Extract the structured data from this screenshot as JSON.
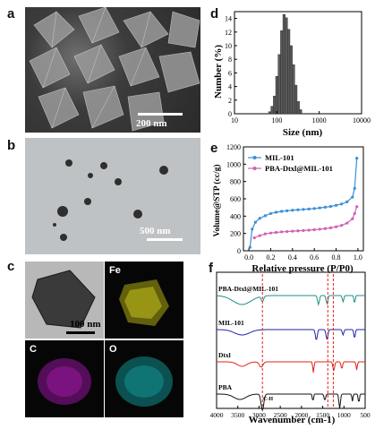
{
  "panels": {
    "a": {
      "label": "a",
      "scalebar": "200 nm"
    },
    "b": {
      "label": "b",
      "scalebar": "500 nm"
    },
    "c": {
      "label": "c",
      "scalebar": "100 nm",
      "maps": [
        "Fe",
        "C",
        "O"
      ]
    },
    "d": {
      "label": "d"
    },
    "e": {
      "label": "e"
    },
    "f": {
      "label": "f"
    }
  },
  "colors": {
    "hist": "#5a5a5a",
    "mil": "#3a8fd6",
    "pba_mil": "#d15fb3",
    "teal": "#1f8f84",
    "blue": "#2323a6",
    "red": "#e2231a",
    "black": "#111111",
    "fe": "#d9d21a",
    "c": "#c21ec9",
    "o": "#17c7c2"
  },
  "chart_data": [
    {
      "id": "d",
      "type": "bar",
      "xscale": "log",
      "xlim": [
        10,
        10000
      ],
      "ylim": [
        0,
        15
      ],
      "xticks": [
        "10",
        "100",
        "1000",
        "10000"
      ],
      "yticks": [
        "0",
        "2",
        "4",
        "6",
        "8",
        "10",
        "12",
        "14"
      ],
      "xlabel": "Size (nm)",
      "ylabel": "Number (%)",
      "bins": [
        {
          "x": 68,
          "y": 0.3
        },
        {
          "x": 77,
          "y": 1.1
        },
        {
          "x": 88,
          "y": 2.6
        },
        {
          "x": 100,
          "y": 5.5
        },
        {
          "x": 114,
          "y": 8.7
        },
        {
          "x": 130,
          "y": 12.2
        },
        {
          "x": 148,
          "y": 14.6
        },
        {
          "x": 168,
          "y": 14.1
        },
        {
          "x": 191,
          "y": 12.4
        },
        {
          "x": 218,
          "y": 10.0
        },
        {
          "x": 248,
          "y": 7.2
        },
        {
          "x": 282,
          "y": 4.2
        },
        {
          "x": 321,
          "y": 1.8
        },
        {
          "x": 365,
          "y": 0.6
        }
      ]
    },
    {
      "id": "e",
      "type": "line",
      "xlim": [
        -0.05,
        1.05
      ],
      "ylim": [
        0,
        1200
      ],
      "xticks": [
        "0.0",
        "0.2",
        "0.4",
        "0.6",
        "0.8",
        "1.0"
      ],
      "yticks": [
        "0",
        "200",
        "400",
        "600",
        "800",
        "1000",
        "1200"
      ],
      "xlabel": "Relative pressure (P/P0)",
      "ylabel": "Volume@STP (cc/g)",
      "legend_position": "top-left",
      "series": [
        {
          "name": "MIL-101",
          "x": [
            0.01,
            0.03,
            0.06,
            0.1,
            0.15,
            0.2,
            0.25,
            0.3,
            0.35,
            0.4,
            0.45,
            0.5,
            0.55,
            0.6,
            0.65,
            0.7,
            0.75,
            0.8,
            0.85,
            0.9,
            0.95,
            0.97,
            0.99
          ],
          "y": [
            40,
            250,
            330,
            375,
            405,
            430,
            445,
            455,
            462,
            468,
            473,
            478,
            482,
            488,
            495,
            503,
            512,
            525,
            540,
            565,
            620,
            720,
            1070
          ]
        },
        {
          "name": "PBA-Dtxl@MIL-101",
          "x": [
            0.05,
            0.1,
            0.15,
            0.2,
            0.25,
            0.3,
            0.35,
            0.4,
            0.45,
            0.5,
            0.55,
            0.6,
            0.65,
            0.7,
            0.75,
            0.8,
            0.85,
            0.9,
            0.95,
            0.97,
            0.99
          ],
          "y": [
            150,
            175,
            195,
            205,
            212,
            218,
            222,
            226,
            230,
            234,
            238,
            243,
            249,
            256,
            265,
            277,
            293,
            320,
            370,
            430,
            510
          ]
        }
      ]
    },
    {
      "id": "f",
      "type": "line",
      "xlim": [
        4000,
        500
      ],
      "xticks": [
        "4000",
        "3500",
        "3000",
        "2500",
        "2000",
        "1500",
        "1000",
        "500"
      ],
      "xlabel": "Wavenumber (cm-1)",
      "annotation": "C-H",
      "series": [
        {
          "name": "PBA-Dtxl@MIL-101"
        },
        {
          "name": "MIL-101"
        },
        {
          "name": "Dtxl"
        },
        {
          "name": "PBA"
        }
      ]
    }
  ]
}
